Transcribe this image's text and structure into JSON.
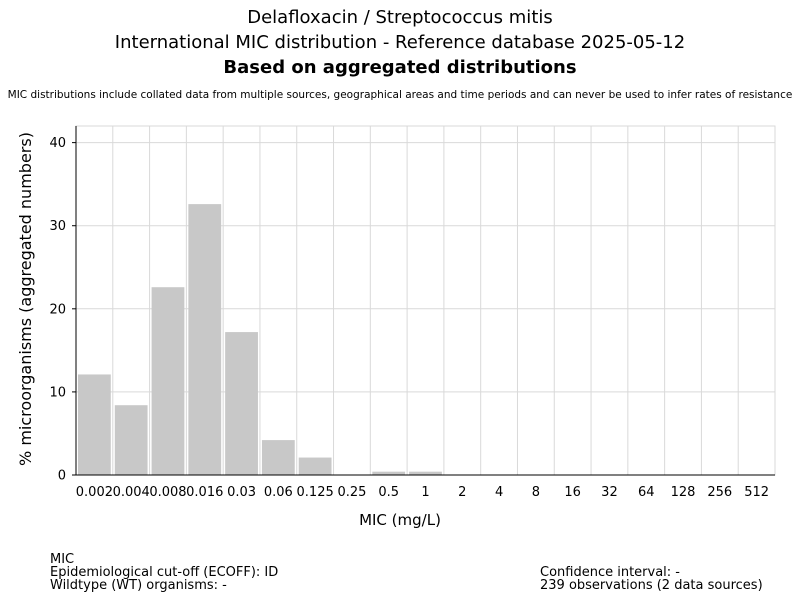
{
  "header": {
    "title_line1": "Delafloxacin / Streptococcus mitis",
    "title_line2": "International MIC distribution - Reference database 2025-05-12",
    "title_line3": "Based on aggregated distributions",
    "note": "MIC distributions include collated data from multiple sources, geographical areas and time periods and can never be used to infer rates of resistance"
  },
  "chart_data": {
    "type": "bar",
    "categories": [
      "0.002",
      "0.004",
      "0.008",
      "0.016",
      "0.03",
      "0.06",
      "0.125",
      "0.25",
      "0.5",
      "1",
      "2",
      "4",
      "8",
      "16",
      "32",
      "64",
      "128",
      "256",
      "512"
    ],
    "values": [
      12.1,
      8.4,
      22.6,
      32.6,
      17.2,
      4.2,
      2.1,
      0,
      0.4,
      0.4,
      0,
      0,
      0,
      0,
      0,
      0,
      0,
      0,
      0
    ],
    "xlabel": "MIC (mg/L)",
    "ylabel": "% microorganisms (aggregated numbers)",
    "ylim": [
      0,
      42
    ],
    "yticks": [
      0,
      10,
      20,
      30,
      40
    ],
    "grid": true,
    "bar_color": "#c8c8c8",
    "grid_color": "#d9d9d9"
  },
  "footer": {
    "left": [
      "MIC",
      "Epidemiological cut-off (ECOFF): ID",
      "Wildtype (WT) organisms:  -"
    ],
    "right": [
      "Confidence interval: -",
      "239 observations (2 data sources)"
    ]
  }
}
